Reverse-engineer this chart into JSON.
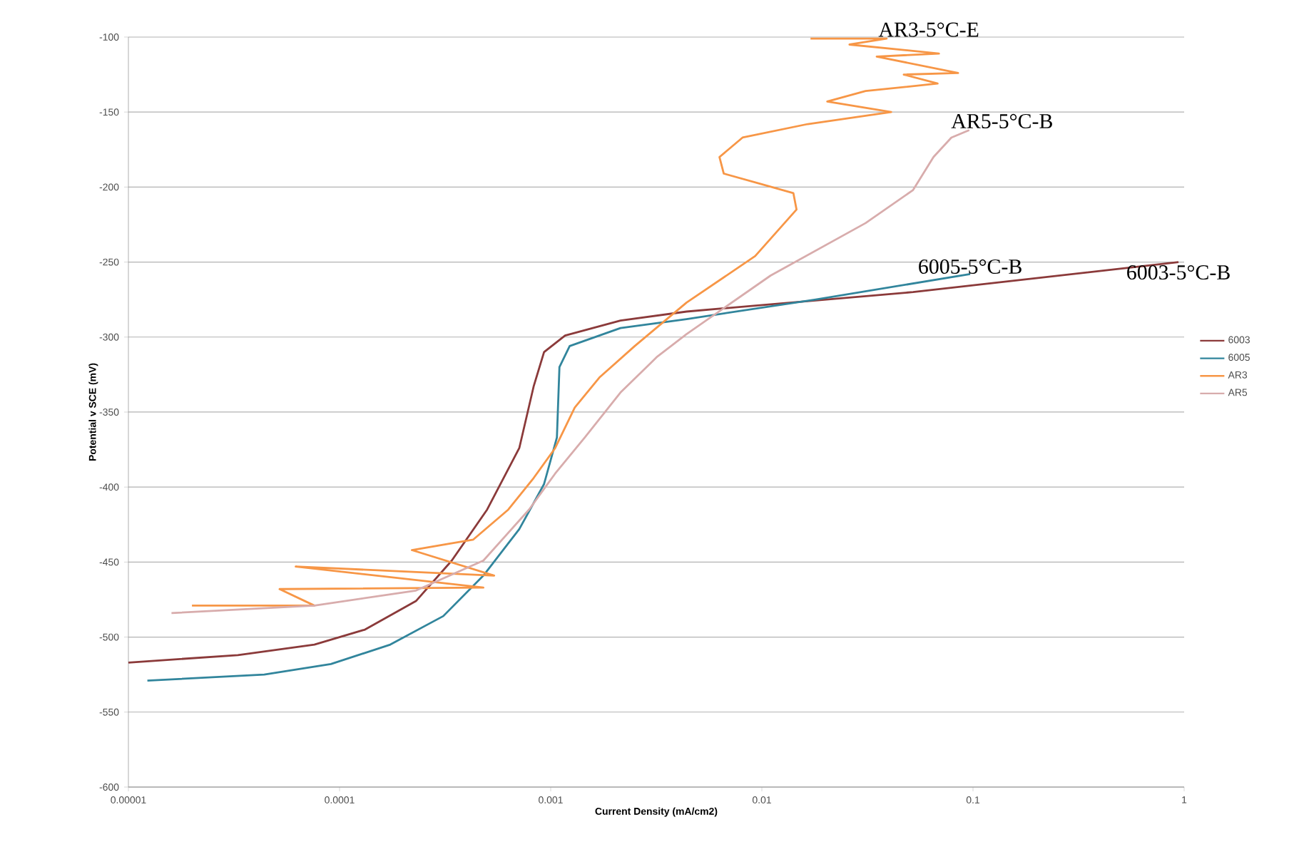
{
  "chart_data": {
    "type": "line",
    "xlabel": "Current Density (mA/cm2)",
    "ylabel": "Potential v SCE (mV)",
    "log": "x",
    "grid": "y",
    "legend": "right",
    "marker": "none",
    "line_style": "solid",
    "xlim": [
      1e-05,
      1
    ],
    "ylim": [
      -600,
      -100
    ],
    "xticks": [
      {
        "value": 1e-05,
        "label": "0.00001"
      },
      {
        "value": 0.0001,
        "label": "0.0001"
      },
      {
        "value": 0.001,
        "label": "0.001"
      },
      {
        "value": 0.01,
        "label": "0.01"
      },
      {
        "value": 0.1,
        "label": "0.1"
      },
      {
        "value": 1,
        "label": "1"
      }
    ],
    "yticks": [
      -100,
      -150,
      -200,
      -250,
      -300,
      -350,
      -400,
      -450,
      -500,
      -550,
      -600
    ],
    "series": [
      {
        "name": "6003",
        "color": "#8b3a3a",
        "x": [
          1e-05,
          3.3e-05,
          7.6e-05,
          0.000132,
          0.00023,
          0.00034,
          0.0005,
          0.00071,
          0.00083,
          0.00093,
          0.00117,
          0.00214,
          0.0044,
          0.052,
          0.94
        ],
        "values": [
          -517,
          -512,
          -505,
          -495,
          -476,
          -449,
          -415,
          -374,
          -333,
          -310,
          -299,
          -289,
          -283,
          -270,
          -250
        ]
      },
      {
        "name": "6005",
        "color": "#31859c",
        "x": [
          1.23e-05,
          4.4e-05,
          9.1e-05,
          0.000174,
          0.00031,
          0.00048,
          0.00071,
          0.00093,
          0.00107,
          0.0011,
          0.00123,
          0.00214,
          0.0044,
          0.018,
          0.097
        ],
        "values": [
          -529,
          -525,
          -518,
          -505,
          -486,
          -459,
          -428,
          -398,
          -367,
          -320,
          -306,
          -294,
          -288,
          -275,
          -258
        ]
      },
      {
        "name": "AR3",
        "color": "#f79646",
        "x": [
          2e-05,
          7.6e-05,
          5.2e-05,
          0.00048,
          6.2e-05,
          0.00054,
          0.00022,
          0.00043,
          0.00063,
          0.00083,
          0.00105,
          0.0013,
          0.0017,
          0.0025,
          0.0044,
          0.0093,
          0.0146,
          0.0141,
          0.0066,
          0.0063,
          0.0081,
          0.0165,
          0.041,
          0.0204,
          0.031,
          0.068,
          0.047,
          0.085,
          0.035,
          0.069,
          0.026,
          0.039,
          0.017
        ],
        "values": [
          -479,
          -479,
          -468,
          -467,
          -453,
          -459,
          -442,
          -435,
          -415,
          -394,
          -374,
          -347,
          -327,
          -306,
          -277,
          -246,
          -215,
          -204,
          -191,
          -180,
          -167,
          -158,
          -150,
          -143,
          -136,
          -131,
          -125,
          -124,
          -113,
          -111,
          -105,
          -101,
          -101
        ]
      },
      {
        "name": "AR5",
        "color": "#d8acac",
        "x": [
          1.6e-05,
          7.6e-05,
          0.00023,
          0.00048,
          0.00079,
          0.00105,
          0.00145,
          0.00214,
          0.0032,
          0.0044,
          0.011,
          0.031,
          0.052,
          0.065,
          0.079,
          0.096
        ],
        "values": [
          -484,
          -479,
          -469,
          -449,
          -415,
          -391,
          -367,
          -337,
          -313,
          -298,
          -259,
          -224,
          -202,
          -180,
          -167,
          -162
        ]
      }
    ],
    "annotations": [
      {
        "text": "AR3-5°C-E",
        "x": 0.039,
        "y": -101
      },
      {
        "text": "AR5-5°C-B",
        "x": 0.096,
        "y": -162
      },
      {
        "text": "6005-5°C-B",
        "x": 0.097,
        "y": -258
      },
      {
        "text": "6003-5°C-B",
        "x": 0.94,
        "y": -250
      }
    ]
  }
}
